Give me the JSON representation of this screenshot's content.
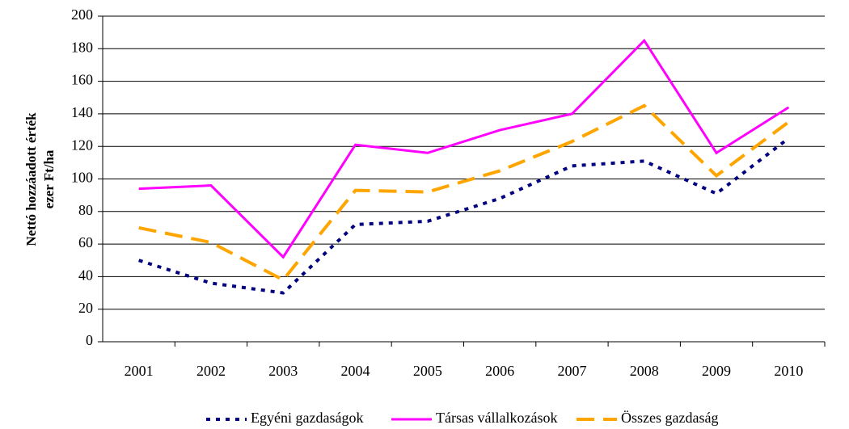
{
  "chart_data": {
    "type": "line",
    "ylabel": [
      "Nettó hozzáadott érték",
      "ezer Ft/ha"
    ],
    "categories": [
      "2001",
      "2002",
      "2003",
      "2004",
      "2005",
      "2006",
      "2007",
      "2008",
      "2009",
      "2010"
    ],
    "series": [
      {
        "name": "Egyéni gazdaságok",
        "color": "#000080",
        "dash": "dot",
        "values": [
          50,
          36,
          30,
          72,
          74,
          88,
          108,
          111,
          91,
          125
        ]
      },
      {
        "name": "Társas vállalkozások",
        "color": "#ff00ff",
        "dash": "solid",
        "values": [
          94,
          96,
          52,
          121,
          116,
          130,
          140,
          185,
          116,
          144
        ]
      },
      {
        "name": "Összes gazdaság",
        "color": "#ffa500",
        "dash": "dash",
        "values": [
          70,
          61,
          38,
          93,
          92,
          105,
          123,
          145,
          102,
          135
        ]
      }
    ],
    "ylim": [
      0,
      200
    ],
    "yticks": [
      0,
      20,
      40,
      60,
      80,
      100,
      120,
      140,
      160,
      180,
      200
    ],
    "grid": true,
    "legend": "bottom"
  }
}
